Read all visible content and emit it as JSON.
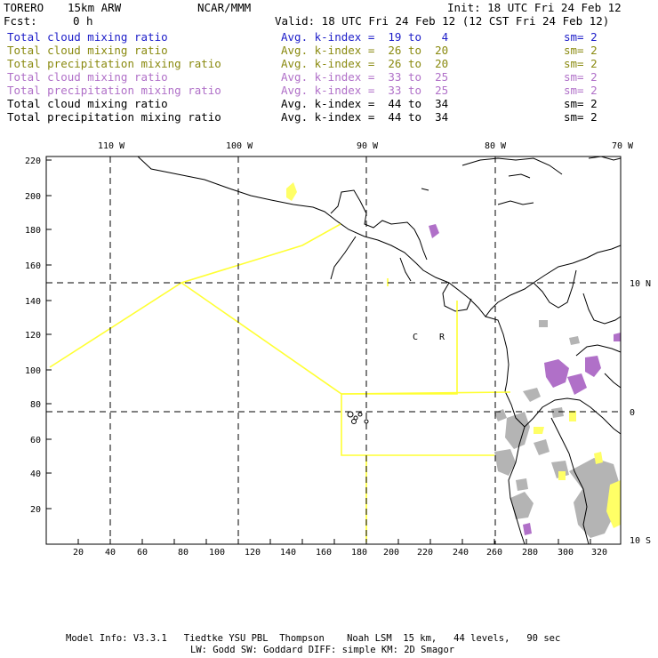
{
  "header": {
    "model": "TORERO",
    "resolution": "15km ARW",
    "org": "NCAR/MMM",
    "init": "Init: 18 UTC Fri 24 Feb 12",
    "fcst_label": "Fcst:",
    "fcst_value": "0 h",
    "valid": "Valid: 18 UTC Fri 24 Feb 12 (12 CST Fri 24 Feb 12)"
  },
  "legend": [
    {
      "name": "Total cloud mixing ratio",
      "k": "Avg. k-index =  19 to   4",
      "sm": "sm= 2",
      "color": "#1c1cc8"
    },
    {
      "name": "Total cloud mixing ratio",
      "k": "Avg. k-index =  26 to  20",
      "sm": "sm= 2",
      "color": "#8a8a10"
    },
    {
      "name": "Total precipitation mixing ratio",
      "k": "Avg. k-index =  26 to  20",
      "sm": "sm= 2",
      "color": "#8a8a10"
    },
    {
      "name": "Total cloud mixing ratio",
      "k": "Avg. k-index =  33 to  25",
      "sm": "sm= 2",
      "color": "#b070c8"
    },
    {
      "name": "Total precipitation mixing ratio",
      "k": "Avg. k-index =  33 to  25",
      "sm": "sm= 2",
      "color": "#b070c8"
    },
    {
      "name": "Total cloud mixing ratio",
      "k": "Avg. k-index =  44 to  34",
      "sm": "sm= 2",
      "color": "#000000"
    },
    {
      "name": "Total precipitation mixing ratio",
      "k": "Avg. k-index =  44 to  34",
      "sm": "sm= 2",
      "color": "#000000"
    }
  ],
  "map": {
    "top_lon_labels": [
      "110 W",
      "100 W",
      "90 W",
      "80 W",
      "70 W"
    ],
    "right_lat_labels": [
      "10 N",
      "0",
      "10 S"
    ],
    "x_ticks": [
      "20",
      "40",
      "60",
      "80",
      "100",
      "120",
      "140",
      "160",
      "180",
      "200",
      "220",
      "240",
      "260",
      "280",
      "300",
      "320"
    ],
    "y_ticks": [
      "220",
      "200",
      "180",
      "160",
      "140",
      "120",
      "100",
      "80",
      "60",
      "40",
      "20"
    ],
    "inner_labels": [
      "C",
      "R"
    ],
    "colors": {
      "boundary": "#ffff33",
      "cloud_purple": "#b070c8",
      "precip_gray": "#b4b4b4",
      "yellow_fill": "#ffff66"
    }
  },
  "footer": {
    "line1": "Model Info: V3.3.1   Tiedtke YSU PBL  Thompson    Noah LSM  15 km,   44 levels,   90 sec",
    "line2": "LW: Godd SW: Goddard DIFF: simple KM: 2D Smagor"
  }
}
